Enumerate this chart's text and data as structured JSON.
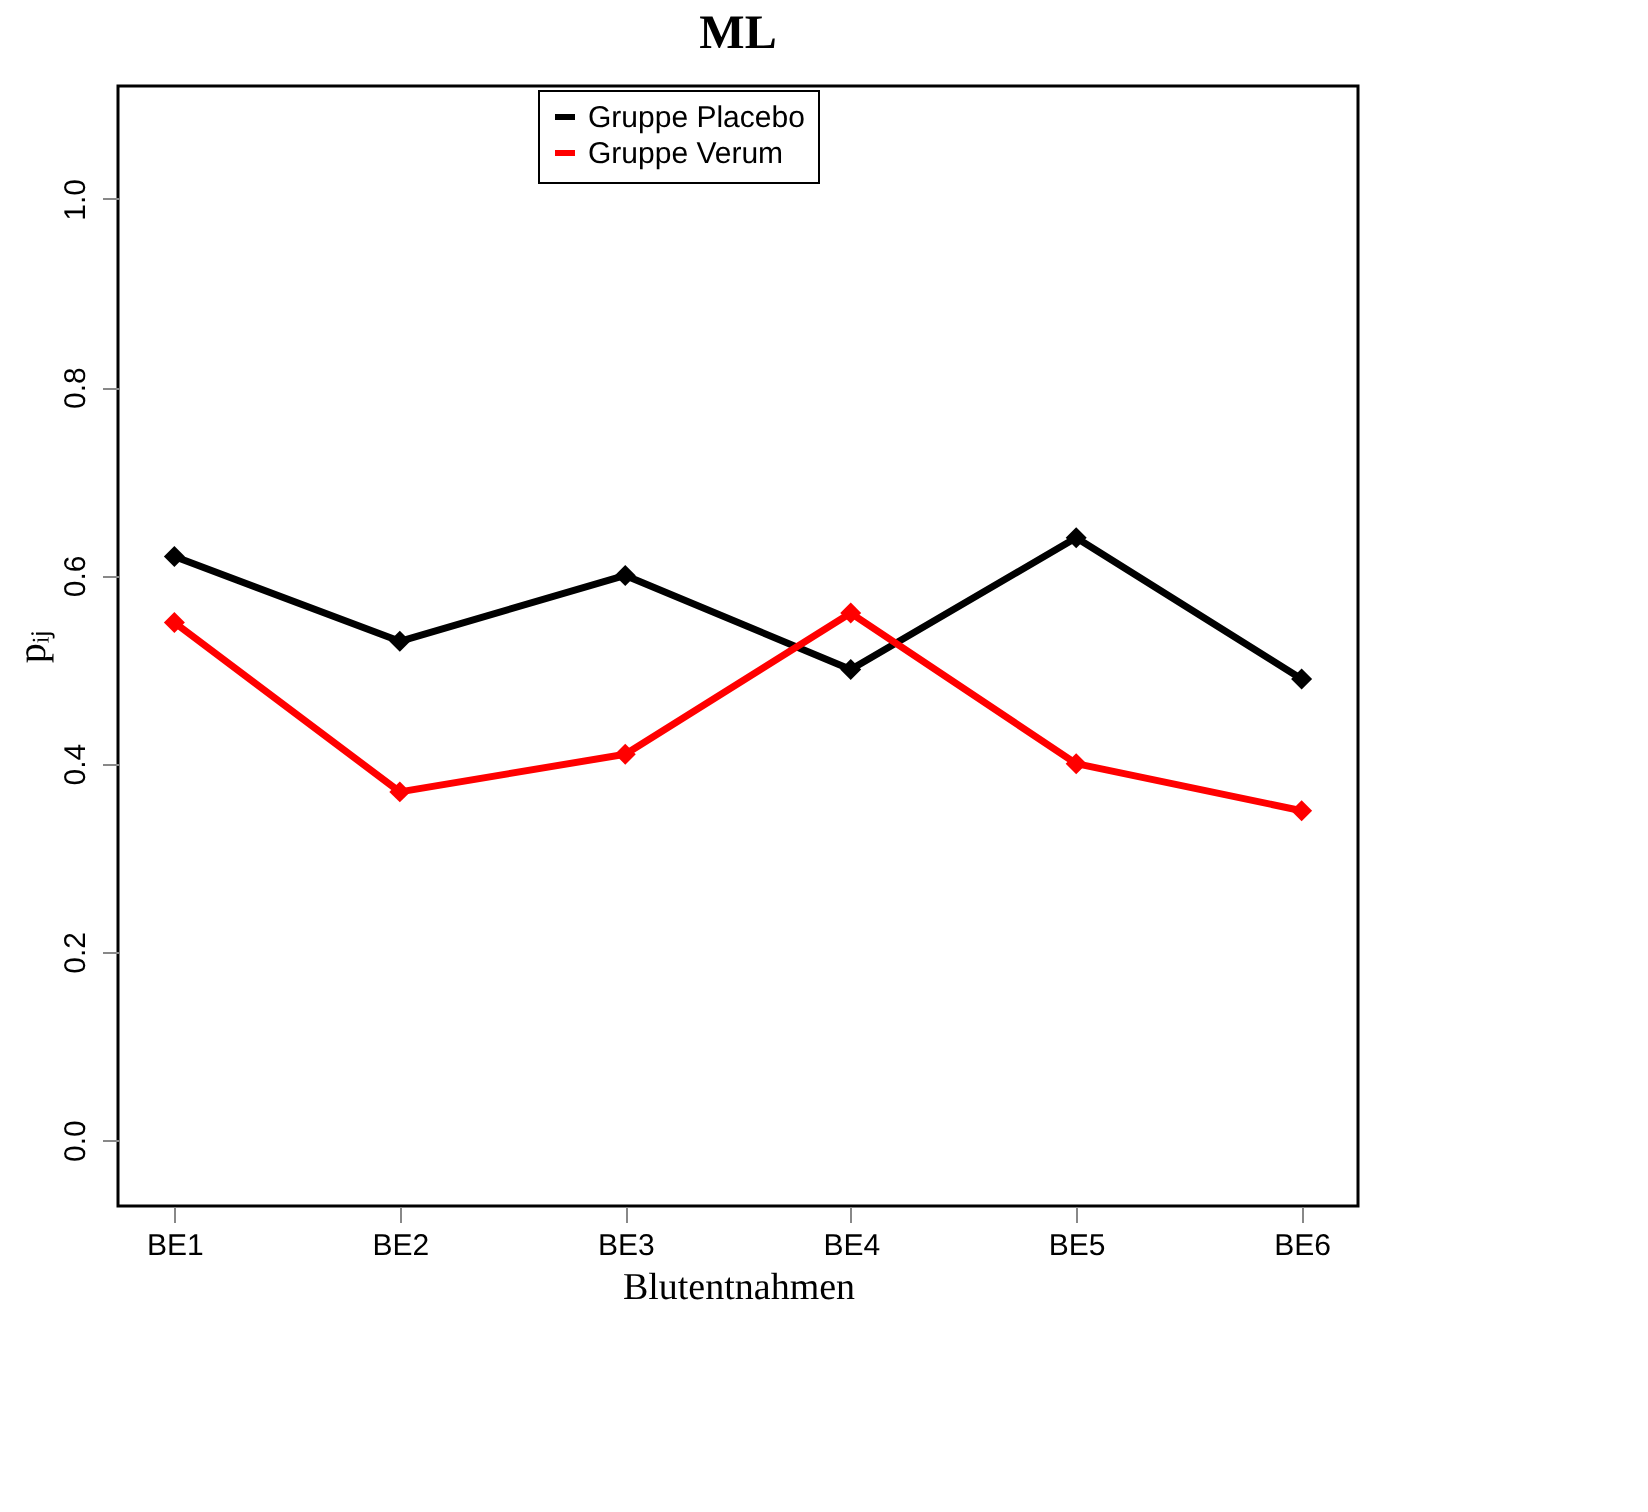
{
  "chart_data": {
    "type": "line",
    "title": "ML",
    "xlabel": "Blutentnahmen",
    "ylabel": "pᵢⱼ",
    "categories": [
      "BE1",
      "BE2",
      "BE3",
      "BE4",
      "BE5",
      "BE6"
    ],
    "series": [
      {
        "name": "Gruppe Placebo",
        "color": "#000000",
        "values": [
          0.62,
          0.53,
          0.6,
          0.5,
          0.64,
          0.49
        ]
      },
      {
        "name": "Gruppe Verum",
        "color": "#ff0000",
        "values": [
          0.55,
          0.37,
          0.41,
          0.56,
          0.4,
          0.35
        ]
      }
    ],
    "ylim": [
      -0.07,
      1.12
    ],
    "yticks": [
      {
        "value": 0,
        "label": "0.0"
      },
      {
        "value": 0.2,
        "label": "0.2"
      },
      {
        "value": 0.4,
        "label": "0.4"
      },
      {
        "value": 0.6,
        "label": "0.6"
      },
      {
        "value": 0.8,
        "label": "0.8"
      },
      {
        "value": 1.0,
        "label": "1.0"
      }
    ],
    "grid": false,
    "legend": "top",
    "marker": "diamond",
    "line_style": "solid"
  }
}
